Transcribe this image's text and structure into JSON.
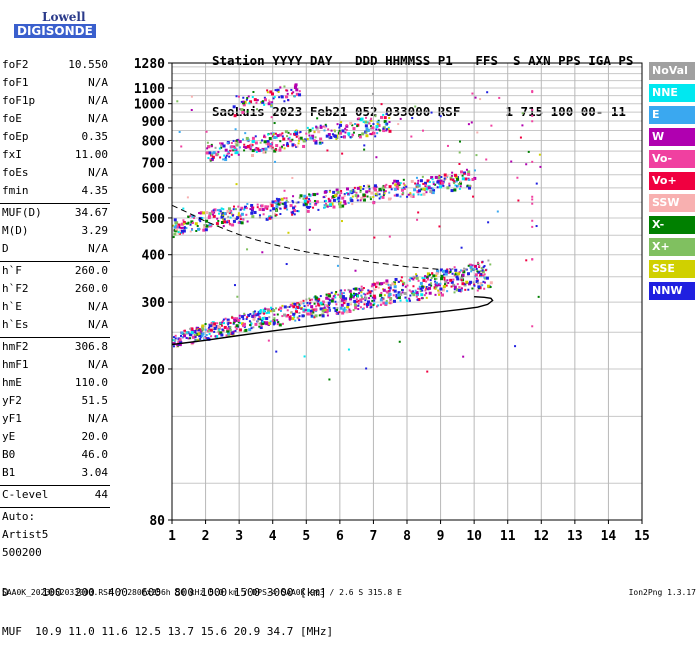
{
  "logo": {
    "line1": "Lowell",
    "line2": "DIGISONDE"
  },
  "header": {
    "line1": "Station YYYY DAY   DDD HHMMSS P1   FFS  S AXN PPS IGA PS",
    "line2": "SaoLuis 2023 Feb21 052 033000 RSF      1 715 100 00- 11"
  },
  "params": {
    "group1": [
      {
        "name": "foF2",
        "value": "10.550"
      },
      {
        "name": "foF1",
        "value": "N/A"
      },
      {
        "name": "foF1p",
        "value": "N/A"
      },
      {
        "name": "foE",
        "value": "N/A"
      },
      {
        "name": "foEp",
        "value": "0.35"
      },
      {
        "name": "fxI",
        "value": "11.00"
      },
      {
        "name": "foEs",
        "value": "N/A"
      },
      {
        "name": "fmin",
        "value": "4.35"
      }
    ],
    "group2": [
      {
        "name": "MUF(D)",
        "value": "34.67"
      },
      {
        "name": "M(D)",
        "value": "3.29"
      },
      {
        "name": "D",
        "value": "N/A"
      }
    ],
    "group3": [
      {
        "name": "h`F",
        "value": "260.0"
      },
      {
        "name": "h`F2",
        "value": "260.0"
      },
      {
        "name": "h`E",
        "value": "N/A"
      },
      {
        "name": "h`Es",
        "value": "N/A"
      }
    ],
    "group4": [
      {
        "name": "hmF2",
        "value": "306.8"
      },
      {
        "name": "hmF1",
        "value": "N/A"
      },
      {
        "name": "hmE",
        "value": "110.0"
      },
      {
        "name": "yF2",
        "value": "51.5"
      },
      {
        "name": "yF1",
        "value": "N/A"
      },
      {
        "name": "yE",
        "value": "20.0"
      },
      {
        "name": "B0",
        "value": "46.0"
      },
      {
        "name": "B1",
        "value": "3.04"
      }
    ],
    "clevel": {
      "name": "C-level",
      "value": "44"
    },
    "auto": [
      "Auto:",
      "Artist5",
      "500200"
    ]
  },
  "legend": [
    {
      "label": "NoVal",
      "color": "#a0a0a0"
    },
    {
      "label": "NNE",
      "color": "#00e8f0"
    },
    {
      "label": "E",
      "color": "#3aa8f0"
    },
    {
      "label": "W",
      "color": "#b000b0"
    },
    {
      "label": "Vo-",
      "color": "#f040a0"
    },
    {
      "label": "Vo+",
      "color": "#f00040"
    },
    {
      "label": "SSW",
      "color": "#f8b0b0"
    },
    {
      "label": "X-",
      "color": "#008000"
    },
    {
      "label": "X+",
      "color": "#80c060"
    },
    {
      "label": "SSE",
      "color": "#d0d000"
    },
    {
      "label": "NNW",
      "color": "#2020e0"
    }
  ],
  "bottom": {
    "line1": "D     100  200  400  600  800 1000 1500 3000 [km]",
    "line2": "MUF  10.9 11.0 11.6 12.5 13.7 15.6 20.9 34.7 [MHz]"
  },
  "footer": {
    "left": "SAA0K_2023052033000.RSF / 280fx256h 50 kHz 5.0 km / DPS-4 SAA0K 903 / 2.6 S 315.8 E",
    "right": "Ion2Png 1.3.17"
  },
  "chart_data": {
    "type": "scatter",
    "x_ticks": [
      1,
      2,
      3,
      4,
      5,
      6,
      7,
      8,
      9,
      10,
      11,
      12,
      13,
      14,
      15
    ],
    "y_ticks": [
      80,
      200,
      300,
      400,
      500,
      600,
      700,
      800,
      900,
      1000,
      1100,
      1280
    ],
    "xlim": [
      1,
      15
    ],
    "ylim": [
      80,
      1280
    ],
    "y_scale": "log",
    "grid": true,
    "traces": [
      {
        "name": "O-trace F2 (1st hop)",
        "x_start": 1.0,
        "x_end": 10.5,
        "y_start": 240,
        "y_end": 360
      },
      {
        "name": "2nd hop",
        "x_start": 1.0,
        "x_end": 10.0,
        "y_start": 480,
        "y_end": 640
      },
      {
        "name": "3rd hop",
        "x_start": 2.0,
        "x_end": 7.5,
        "y_start": 740,
        "y_end": 900
      },
      {
        "name": "4th hop",
        "x_start": 2.8,
        "x_end": 4.8,
        "y_start": 990,
        "y_end": 1100
      }
    ],
    "profile_x": [
      1.0,
      2.0,
      3.0,
      4.0,
      5.0,
      6.0,
      7.0,
      8.0,
      9.0,
      9.6,
      10.1,
      10.4,
      10.55,
      10.5,
      10.3,
      10.0
    ],
    "profile_y": [
      232,
      238,
      245,
      252,
      259,
      266,
      272,
      277,
      283,
      287,
      291,
      296,
      303,
      307,
      309,
      310
    ],
    "muf_curve_x": [
      1.0,
      1.5,
      2.0,
      2.5,
      3.0,
      3.5,
      4.0,
      4.5,
      5.0,
      5.5,
      6.0,
      6.5,
      7.0,
      7.5,
      8.0,
      8.5,
      9.0
    ],
    "muf_curve_y": [
      540,
      515,
      490,
      470,
      452,
      438,
      426,
      416,
      407,
      400,
      394,
      388,
      382,
      377,
      372,
      369,
      366
    ]
  }
}
